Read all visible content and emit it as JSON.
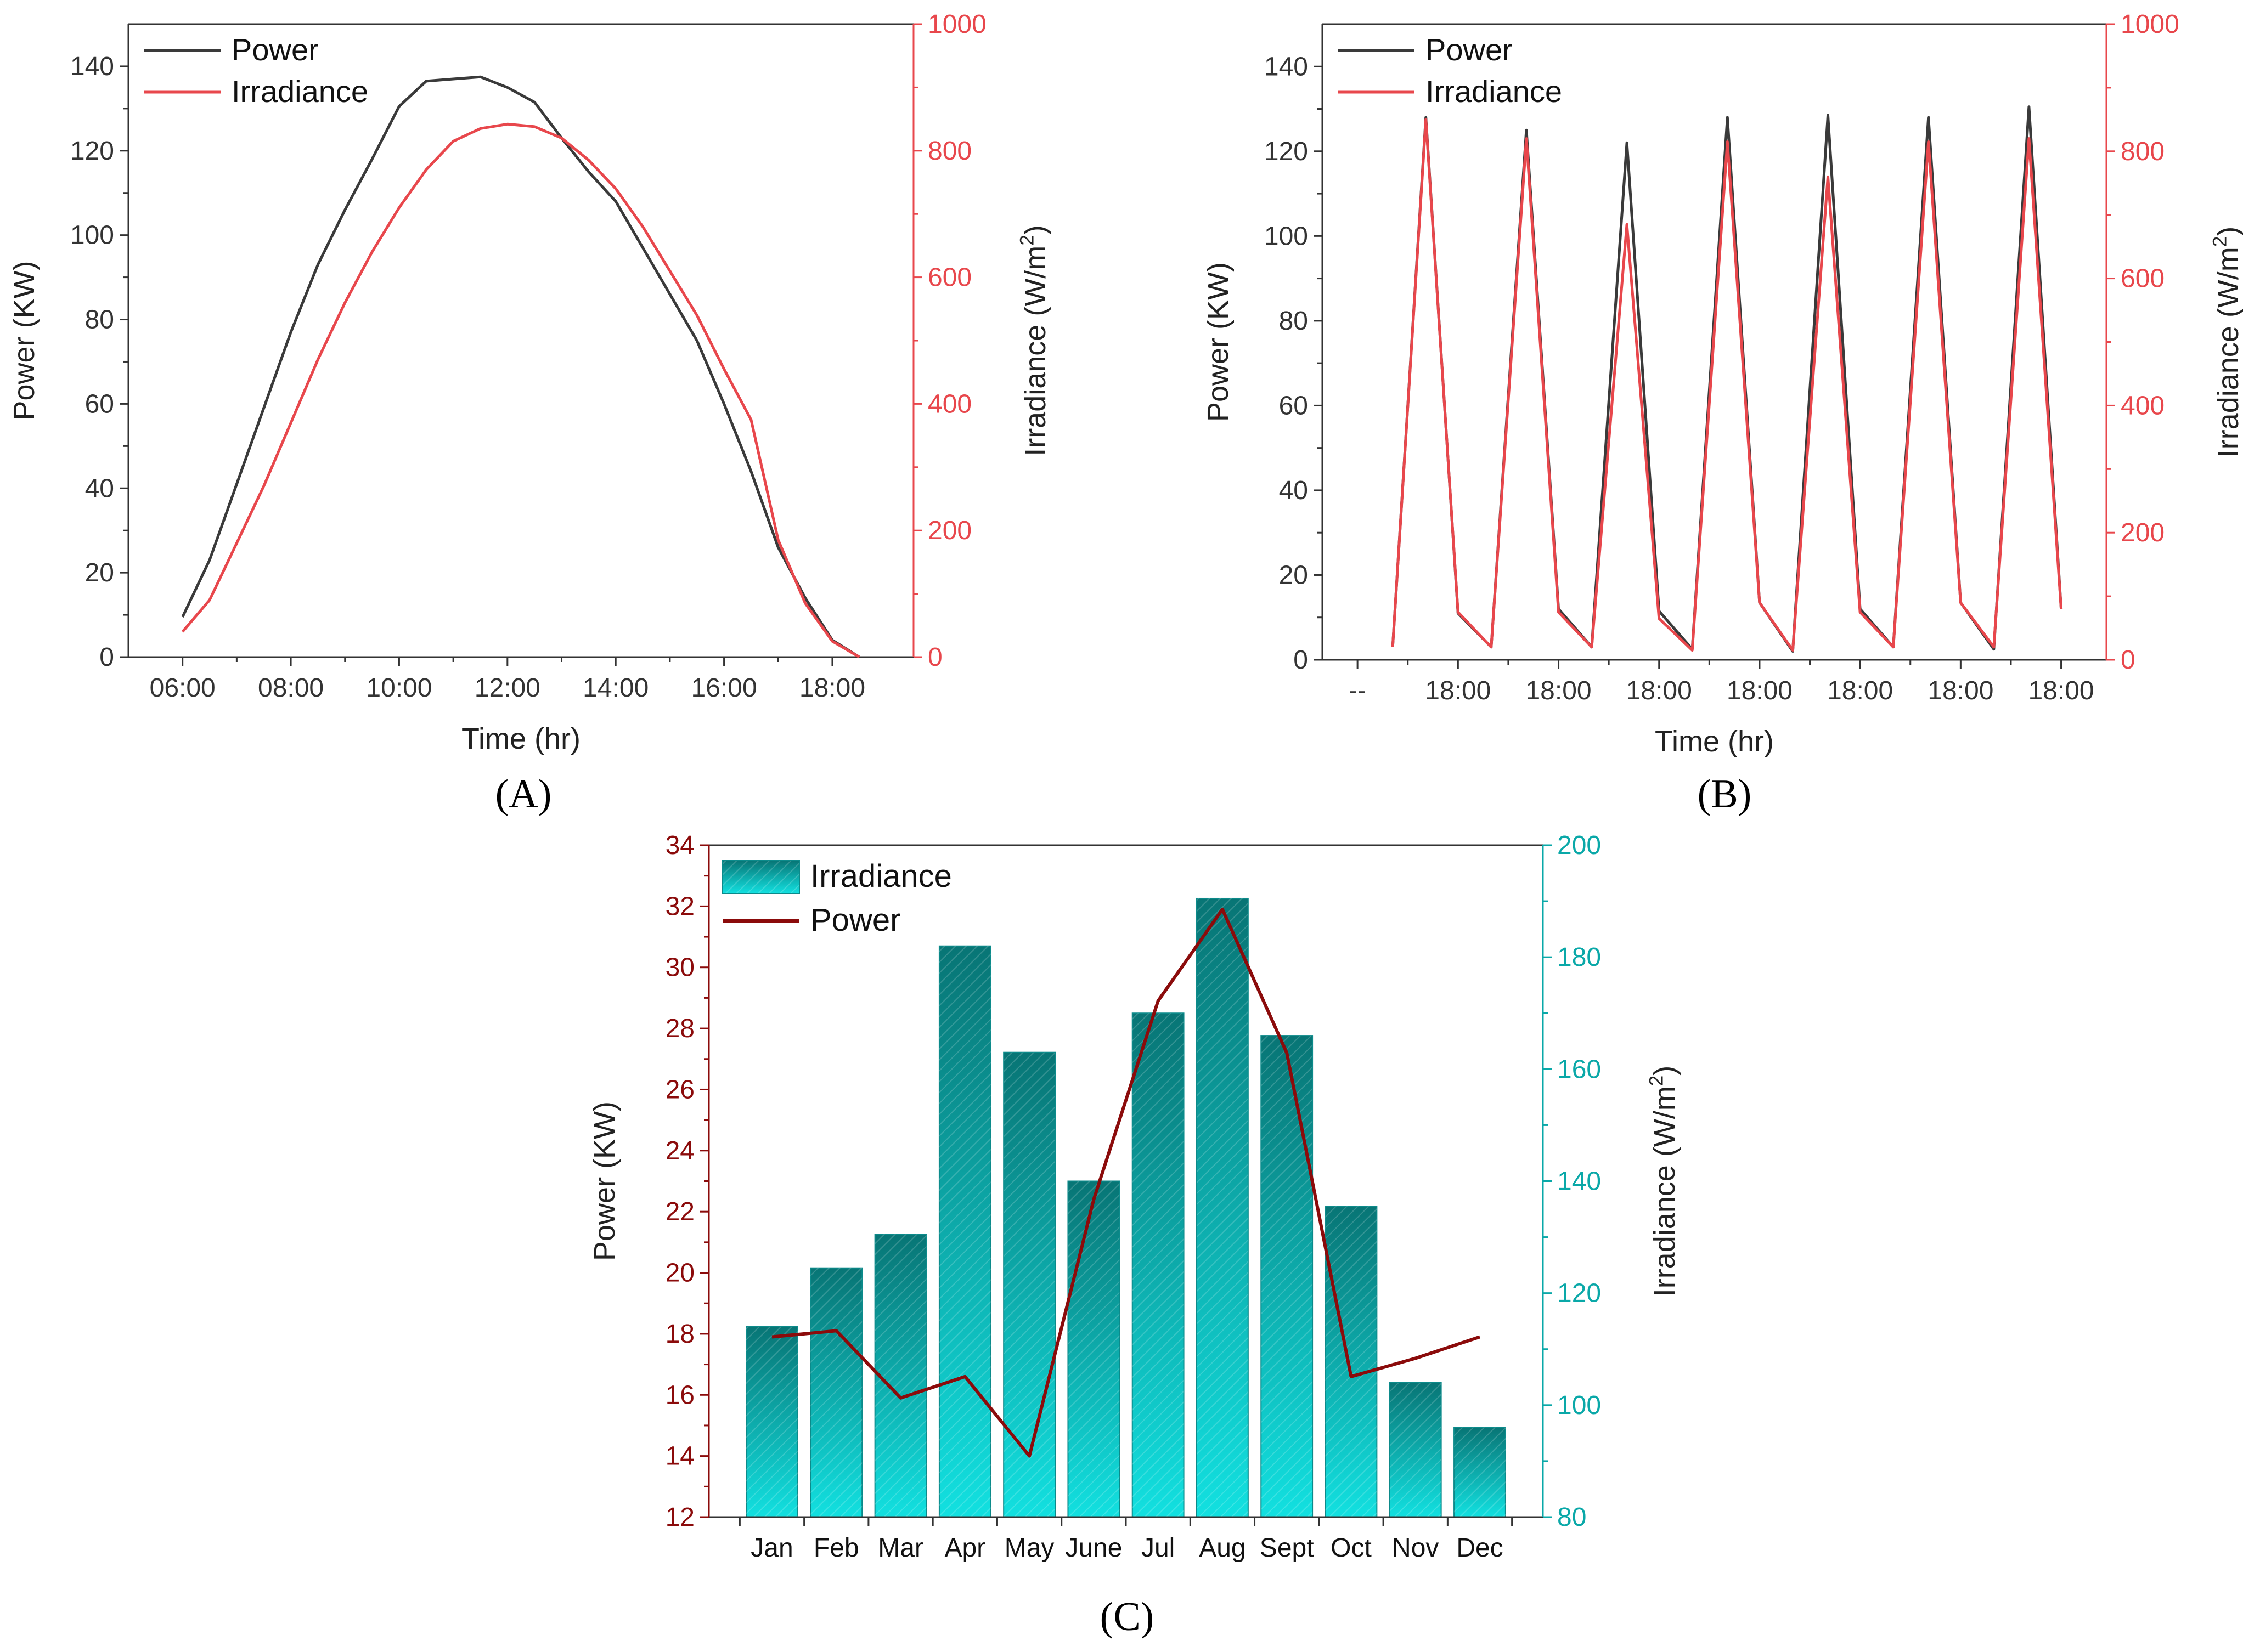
{
  "colors": {
    "power_ab": "#3a3a3a",
    "irradiance_ab": "#e8474c",
    "power_c": "#8b0b0b",
    "irradiance_c": "#0aa8a8",
    "irradiance_c_dark": "#087575",
    "irradiance_c_light": "#12e0e0"
  },
  "chart_data": [
    {
      "panel": "A",
      "type": "line",
      "xlabel": "Time (hr)",
      "ylabel": "Power (KW)",
      "y2label": "Irradiance (W/m²)",
      "x_tick_labels": [
        "06:00",
        "08:00",
        "10:00",
        "12:00",
        "14:00",
        "16:00",
        "18:00"
      ],
      "x_ticks": [
        6,
        8,
        10,
        12,
        14,
        16,
        18
      ],
      "xlim": [
        5,
        19.5
      ],
      "ylim": [
        0,
        150
      ],
      "y_ticks": [
        0,
        20,
        40,
        60,
        80,
        100,
        120,
        140
      ],
      "y2lim": [
        0,
        1000
      ],
      "y2_ticks": [
        0,
        200,
        400,
        600,
        800,
        1000
      ],
      "legend": "top-left",
      "series": [
        {
          "name": "Power",
          "axis": "left",
          "x": [
            6,
            6.5,
            7,
            7.5,
            8,
            8.5,
            9,
            9.5,
            10,
            10.5,
            11,
            11.5,
            12,
            12.5,
            13,
            13.5,
            14,
            14.5,
            15,
            15.5,
            16,
            16.5,
            17,
            17.5,
            18,
            18.5
          ],
          "values": [
            9.5,
            23,
            41,
            59,
            77,
            93,
            106,
            118,
            130.5,
            136.5,
            137,
            137.5,
            135,
            131.5,
            123,
            115,
            108,
            97,
            86,
            75,
            60,
            44,
            26,
            14,
            4,
            0
          ]
        },
        {
          "name": "Irradiance",
          "axis": "right",
          "x": [
            6,
            6.5,
            7,
            7.5,
            8,
            8.5,
            9,
            9.5,
            10,
            10.5,
            11,
            11.5,
            12,
            12.5,
            13,
            13.5,
            14,
            14.5,
            15,
            15.5,
            16,
            16.5,
            17,
            17.5,
            18,
            18.5
          ],
          "values": [
            40,
            90,
            180,
            270,
            370,
            470,
            560,
            640,
            710,
            770,
            815,
            835,
            842,
            838,
            820,
            785,
            740,
            680,
            610,
            540,
            455,
            375,
            185,
            85,
            25,
            0
          ]
        }
      ]
    },
    {
      "panel": "B",
      "type": "line",
      "xlabel": "Time (hr)",
      "ylabel": "Power (KW)",
      "y2label": "Irradiance (W/m²)",
      "x_tick_labels": [
        "--",
        "18:00",
        "18:00",
        "18:00",
        "18:00",
        "18:00",
        "18:00",
        "18:00"
      ],
      "x_ticks": [
        0,
        1,
        2,
        3,
        4,
        5,
        6,
        7
      ],
      "xlim": [
        -0.35,
        7.45
      ],
      "ylim": [
        0,
        150
      ],
      "y_ticks": [
        0,
        20,
        40,
        60,
        80,
        100,
        120,
        140
      ],
      "y2lim": [
        0,
        1000
      ],
      "y2_ticks": [
        0,
        200,
        400,
        600,
        800,
        1000
      ],
      "legend": "top-left",
      "series": [
        {
          "name": "Power",
          "axis": "left",
          "x": [
            0.35,
            0.68,
            1.0,
            1.33,
            1.68,
            2.0,
            2.33,
            2.68,
            3.0,
            3.33,
            3.68,
            4.0,
            4.33,
            4.68,
            5.0,
            5.33,
            5.68,
            6.0,
            6.33,
            6.68,
            7.0
          ],
          "values": [
            3,
            128,
            11,
            3,
            125,
            12,
            3,
            122,
            11.5,
            2.5,
            128,
            13.5,
            2,
            128.5,
            12,
            3,
            128,
            13.5,
            2.5,
            130.5,
            12
          ]
        },
        {
          "name": "Irradiance",
          "axis": "right",
          "x": [
            0.35,
            0.68,
            1.0,
            1.33,
            1.68,
            2.0,
            2.33,
            2.68,
            3.0,
            3.33,
            3.68,
            4.0,
            4.33,
            4.68,
            5.0,
            5.33,
            5.68,
            6.0,
            6.33,
            6.68,
            7.0
          ],
          "values": [
            20,
            850,
            75,
            20,
            820,
            75,
            20,
            685,
            65,
            15,
            815,
            90,
            15,
            760,
            75,
            20,
            815,
            90,
            20,
            820,
            80
          ]
        }
      ]
    },
    {
      "panel": "C",
      "type": "bar",
      "categories": [
        "Jan",
        "Feb",
        "Mar",
        "Apr",
        "May",
        "June",
        "Jul",
        "Aug",
        "Sept",
        "Oct",
        "Nov",
        "Dec"
      ],
      "ylabel": "Power (KW)",
      "y2label": "Irradiance (W/m²)",
      "ylim": [
        12,
        34
      ],
      "y_ticks": [
        12,
        14,
        16,
        18,
        20,
        22,
        24,
        26,
        28,
        30,
        32,
        34
      ],
      "y2lim": [
        80,
        200
      ],
      "y2_ticks": [
        80,
        100,
        120,
        140,
        160,
        180,
        200
      ],
      "legend": "top-left",
      "series": [
        {
          "name": "Irradiance",
          "type": "bar",
          "axis": "right",
          "values": [
            114,
            124.5,
            130.5,
            182,
            163,
            140,
            170,
            190.5,
            166,
            135.5,
            104,
            96
          ]
        },
        {
          "name": "Power",
          "type": "line",
          "axis": "left",
          "values": [
            17.9,
            18.1,
            15.9,
            16.6,
            14.0,
            22.4,
            28.9,
            31.9,
            27.2,
            16.6,
            17.2,
            17.9
          ]
        }
      ]
    }
  ],
  "panel_labels": {
    "A": "(A)",
    "B": "(B)",
    "C": "(C)"
  },
  "y2_label_parts": {
    "prefix": "Irradiance (W/m",
    "sup": "2",
    "suffix": ")"
  }
}
